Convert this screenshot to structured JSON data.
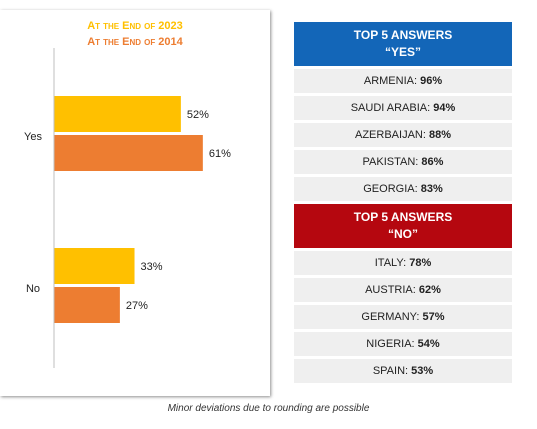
{
  "chart_data": {
    "type": "bar",
    "orientation": "horizontal",
    "categories": [
      "Yes",
      "No"
    ],
    "series": [
      {
        "name": "At the End of 2023",
        "values": [
          52,
          33
        ],
        "color": "#ffc000"
      },
      {
        "name": "At the End of 2014",
        "values": [
          61,
          27
        ],
        "color": "#ed7d31"
      }
    ],
    "value_suffix": "%",
    "xlim": [
      0,
      100
    ],
    "grid": false,
    "legend": "top"
  },
  "tables": [
    {
      "title_line1": "TOP 5 ANSWERS",
      "title_line2": "“YES”",
      "color": "#1366b8",
      "rows": [
        {
          "country": "ARMENIA:",
          "value": "96%"
        },
        {
          "country": "SAUDI ARABIA:",
          "value": "94%"
        },
        {
          "country": "AZERBAIJAN:",
          "value": "88%"
        },
        {
          "country": "PAKISTAN:",
          "value": "86%"
        },
        {
          "country": "GEORGIA:",
          "value": "83%"
        }
      ]
    },
    {
      "title_line1": "TOP 5 ANSWERS",
      "title_line2": "“NO”",
      "color": "#b5070f",
      "rows": [
        {
          "country": "ITALY:",
          "value": "78%"
        },
        {
          "country": "AUSTRIA:",
          "value": "62%"
        },
        {
          "country": "GERMANY:",
          "value": "57%"
        },
        {
          "country": "NIGERIA:",
          "value": "54%"
        },
        {
          "country": "SPAIN:",
          "value": "53%"
        }
      ]
    }
  ],
  "footnote": "Minor deviations due to rounding are possible"
}
